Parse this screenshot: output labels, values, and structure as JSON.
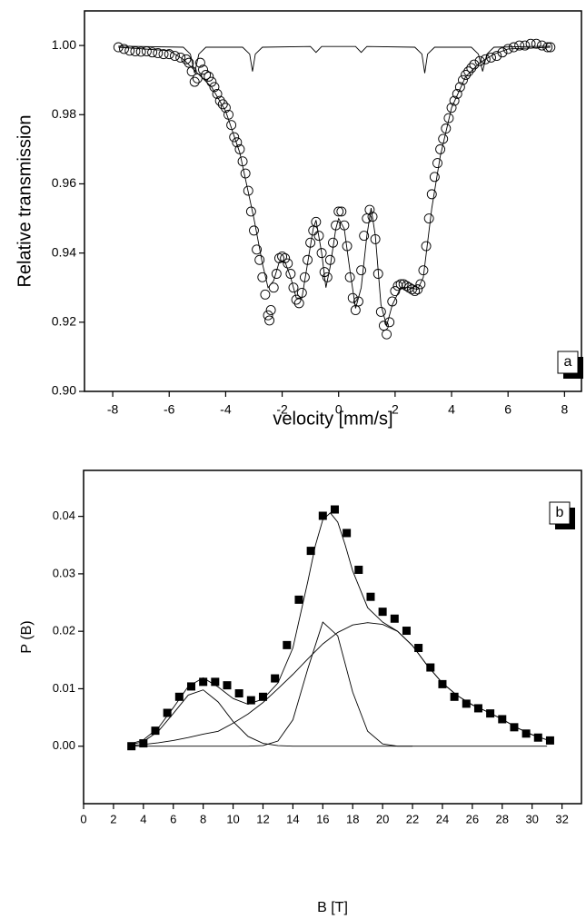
{
  "chart_data": [
    {
      "type": "scatter",
      "label": "a",
      "marker": "circle",
      "color": "#000000",
      "x_label": "velocity [mm/s]",
      "y_label": "Relative transmission",
      "xlim": [
        -9,
        8.6
      ],
      "ylim": [
        0.9,
        1.01
      ],
      "xticks": [
        -8,
        -6,
        -4,
        -2,
        0,
        2,
        4,
        6,
        8
      ],
      "yticks": [
        {
          "value": 0.9,
          "label": "0.90"
        },
        {
          "value": 0.92,
          "label": "0.92"
        },
        {
          "value": 0.94,
          "label": "0.94"
        },
        {
          "value": 0.96,
          "label": "0.96"
        },
        {
          "value": 0.98,
          "label": "0.98"
        },
        {
          "value": 1.0,
          "label": "1.00"
        }
      ],
      "points": {
        "x": [
          -7.8,
          -7.6,
          -7.4,
          -7.2,
          -7.0,
          -6.8,
          -6.6,
          -6.4,
          -6.2,
          -6.0,
          -5.8,
          -5.6,
          -5.4,
          -5.3,
          -5.2,
          -5.1,
          -5.0,
          -4.9,
          -4.8,
          -4.7,
          -4.6,
          -4.5,
          -4.4,
          -4.3,
          -4.2,
          -4.1,
          -4.0,
          -3.9,
          -3.8,
          -3.7,
          -3.6,
          -3.5,
          -3.4,
          -3.3,
          -3.2,
          -3.1,
          -3.0,
          -2.9,
          -2.8,
          -2.7,
          -2.6,
          -2.5,
          -2.45,
          -2.4,
          -2.3,
          -2.2,
          -2.1,
          -2.0,
          -1.9,
          -1.8,
          -1.7,
          -1.6,
          -1.5,
          -1.4,
          -1.3,
          -1.2,
          -1.1,
          -1.0,
          -0.9,
          -0.8,
          -0.7,
          -0.6,
          -0.5,
          -0.4,
          -0.3,
          -0.2,
          -0.1,
          0.0,
          0.1,
          0.2,
          0.3,
          0.4,
          0.5,
          0.6,
          0.7,
          0.8,
          0.9,
          1.0,
          1.1,
          1.2,
          1.3,
          1.4,
          1.5,
          1.6,
          1.7,
          1.8,
          1.9,
          2.0,
          2.1,
          2.2,
          2.3,
          2.4,
          2.5,
          2.6,
          2.7,
          2.8,
          2.9,
          3.0,
          3.1,
          3.2,
          3.3,
          3.4,
          3.5,
          3.6,
          3.7,
          3.8,
          3.9,
          4.0,
          4.1,
          4.2,
          4.3,
          4.4,
          4.5,
          4.6,
          4.7,
          4.8,
          5.0,
          5.2,
          5.4,
          5.6,
          5.8,
          6.0,
          6.2,
          6.4,
          6.6,
          6.8,
          7.0,
          7.2,
          7.4,
          7.5
        ],
        "values": [
          0.9995,
          0.999,
          0.9985,
          0.9983,
          0.9982,
          0.9983,
          0.998,
          0.9978,
          0.9975,
          0.9975,
          0.997,
          0.9965,
          0.996,
          0.995,
          0.9925,
          0.9895,
          0.9905,
          0.995,
          0.993,
          0.9915,
          0.991,
          0.9895,
          0.988,
          0.986,
          0.984,
          0.983,
          0.982,
          0.98,
          0.977,
          0.9735,
          0.972,
          0.97,
          0.9665,
          0.963,
          0.958,
          0.952,
          0.9465,
          0.941,
          0.938,
          0.933,
          0.928,
          0.922,
          0.9205,
          0.9235,
          0.93,
          0.934,
          0.9385,
          0.939,
          0.9385,
          0.937,
          0.934,
          0.93,
          0.9265,
          0.9255,
          0.9285,
          0.933,
          0.938,
          0.943,
          0.9465,
          0.949,
          0.945,
          0.94,
          0.9345,
          0.933,
          0.938,
          0.943,
          0.948,
          0.952,
          0.952,
          0.948,
          0.942,
          0.933,
          0.927,
          0.9235,
          0.926,
          0.935,
          0.945,
          0.95,
          0.9525,
          0.9505,
          0.944,
          0.934,
          0.923,
          0.919,
          0.9165,
          0.92,
          0.926,
          0.929,
          0.9305,
          0.931,
          0.931,
          0.9305,
          0.93,
          0.9295,
          0.929,
          0.9295,
          0.931,
          0.935,
          0.942,
          0.95,
          0.957,
          0.962,
          0.966,
          0.97,
          0.973,
          0.976,
          0.979,
          0.982,
          0.984,
          0.986,
          0.988,
          0.99,
          0.9915,
          0.9925,
          0.9935,
          0.9945,
          0.9955,
          0.996,
          0.9965,
          0.997,
          0.998,
          0.999,
          0.9995,
          1.0,
          1.0,
          1.0005,
          1.0005,
          1.0,
          0.9995,
          0.9995
        ]
      },
      "lines": [
        {
          "x": [
            -7.8,
            -6,
            -5.5,
            -5,
            -4.5,
            -4,
            -3.5,
            -3,
            -2.7,
            -2.5,
            -2.3,
            -2.1,
            -1.9,
            -1.7,
            -1.5,
            -1.3,
            -1.1,
            -0.9,
            -0.8,
            -0.6,
            -0.45,
            -0.3,
            -0.1,
            0,
            0.2,
            0.4,
            0.6,
            0.8,
            1.0,
            1.15,
            1.3,
            1.5,
            1.7,
            1.9,
            2.2,
            2.5,
            2.8,
            3.0,
            3.3,
            3.6,
            4,
            4.5,
            5,
            5.5,
            6,
            7.5
          ],
          "values": [
            0.9995,
            0.9985,
            0.996,
            0.992,
            0.988,
            0.981,
            0.969,
            0.95,
            0.937,
            0.93,
            0.932,
            0.9375,
            0.9375,
            0.933,
            0.927,
            0.927,
            0.937,
            0.947,
            0.9495,
            0.94,
            0.93,
            0.936,
            0.947,
            0.95,
            0.947,
            0.935,
            0.924,
            0.93,
            0.945,
            0.953,
            0.945,
            0.925,
            0.919,
            0.925,
            0.93,
            0.93,
            0.9295,
            0.933,
            0.953,
            0.968,
            0.982,
            0.991,
            0.995,
            0.9975,
            0.999,
            0.9995
          ]
        },
        {
          "x": [
            -7.8,
            -5.5,
            -5.25,
            -5.1,
            -4.95,
            -4.7,
            -3.4,
            -3.15,
            -3.05,
            -2.95,
            -2.7,
            -1.0,
            -0.8,
            -0.6,
            0.6,
            0.8,
            1.0,
            2.7,
            2.95,
            3.05,
            3.15,
            3.4,
            4.7,
            4.95,
            5.1,
            5.25,
            5.5,
            7.5
          ],
          "values": [
            0.9998,
            0.9995,
            0.9975,
            0.992,
            0.9975,
            0.9995,
            0.9995,
            0.9975,
            0.9925,
            0.9975,
            0.9995,
            0.9997,
            0.998,
            0.9997,
            0.9997,
            0.998,
            0.9997,
            0.9995,
            0.9975,
            0.992,
            0.9975,
            0.9995,
            0.9995,
            0.9975,
            0.9925,
            0.9975,
            0.9995,
            0.9998
          ]
        }
      ]
    },
    {
      "type": "scatter",
      "label": "b",
      "marker": "square",
      "color": "#000000",
      "x_label": "B [T]",
      "y_label": "P (B)",
      "xlim": [
        0,
        33.3
      ],
      "ylim": [
        -0.01,
        0.048
      ],
      "xticks": [
        0,
        2,
        4,
        6,
        8,
        10,
        12,
        14,
        16,
        18,
        20,
        22,
        24,
        26,
        28,
        30,
        32
      ],
      "yticks": [
        {
          "value": 0,
          "label": "0.00"
        },
        {
          "value": 0.01,
          "label": "0.01"
        },
        {
          "value": 0.02,
          "label": "0.02"
        },
        {
          "value": 0.03,
          "label": "0.03"
        },
        {
          "value": 0.04,
          "label": "0.04"
        }
      ],
      "points": {
        "x": [
          3.2,
          4,
          4.8,
          5.6,
          6.4,
          7.2,
          8,
          8.8,
          9.6,
          10.4,
          11.2,
          12,
          12.8,
          13.6,
          14.4,
          15.2,
          16,
          16.8,
          17.6,
          18.4,
          19.2,
          20,
          20.8,
          21.6,
          22.4,
          23.2,
          24,
          24.8,
          25.6,
          26.4,
          27.2,
          28,
          28.8,
          29.6,
          30.4,
          31.2
        ],
        "values": [
          0.0,
          0.0005,
          0.0027,
          0.0058,
          0.0086,
          0.0104,
          0.0112,
          0.0112,
          0.0106,
          0.0092,
          0.008,
          0.0086,
          0.0118,
          0.0176,
          0.0255,
          0.034,
          0.0401,
          0.0412,
          0.0371,
          0.0307,
          0.026,
          0.0234,
          0.0222,
          0.0201,
          0.0171,
          0.0137,
          0.0108,
          0.0086,
          0.0074,
          0.0066,
          0.0057,
          0.0047,
          0.0033,
          0.0022,
          0.0015,
          0.001
        ]
      },
      "lines": [
        {
          "x": [
            3,
            4,
            5,
            6,
            7,
            8,
            9,
            10,
            11,
            12,
            13,
            14,
            15,
            15.5,
            16,
            16.5,
            17,
            17.5,
            18,
            19,
            20,
            21,
            22,
            23,
            24,
            25,
            26,
            27,
            28,
            29,
            30,
            31
          ],
          "values": [
            0.0003,
            0.0011,
            0.0032,
            0.0067,
            0.0104,
            0.0119,
            0.0103,
            0.0083,
            0.0073,
            0.0082,
            0.011,
            0.0171,
            0.0287,
            0.0349,
            0.0394,
            0.0406,
            0.039,
            0.035,
            0.0305,
            0.0241,
            0.0216,
            0.02,
            0.0175,
            0.014,
            0.011,
            0.0088,
            0.0072,
            0.006,
            0.0047,
            0.0032,
            0.002,
            0.0011
          ]
        },
        {
          "x": [
            3,
            4,
            5,
            6,
            7,
            8,
            9,
            10,
            11,
            12,
            13,
            14,
            15,
            16,
            17,
            18,
            19,
            20,
            21,
            22,
            23,
            24,
            25,
            26,
            27,
            28,
            29,
            30,
            31
          ],
          "values": [
            0.0002,
            0.0008,
            0.0026,
            0.0057,
            0.0089,
            0.0098,
            0.0077,
            0.0043,
            0.0017,
            0.0005,
            0.0001,
            0,
            0,
            0,
            0,
            0,
            0,
            0,
            0,
            0,
            0,
            0,
            0,
            0,
            0,
            0,
            0,
            0,
            0
          ]
        },
        {
          "x": [
            3,
            4,
            5,
            6,
            7,
            8,
            9,
            10,
            11,
            12,
            13,
            14,
            15,
            16,
            17,
            18,
            19,
            20,
            21,
            22
          ],
          "values": [
            0,
            0,
            0,
            0,
            0,
            0,
            0,
            0,
            0,
            0.0001,
            0.0009,
            0.0046,
            0.0135,
            0.0216,
            0.0192,
            0.0094,
            0.0026,
            0.0004,
            0,
            0
          ]
        },
        {
          "x": [
            3,
            4,
            5,
            6,
            7,
            8,
            9,
            10,
            11,
            12,
            13,
            14,
            15,
            16,
            17,
            18,
            19,
            20,
            21,
            22,
            23,
            24,
            25,
            26,
            27,
            28,
            29,
            30,
            31
          ],
          "values": [
            0.0001,
            0.0003,
            0.0006,
            0.001,
            0.0015,
            0.0021,
            0.0026,
            0.004,
            0.0056,
            0.0076,
            0.01,
            0.0125,
            0.0152,
            0.0178,
            0.0198,
            0.0211,
            0.0215,
            0.0212,
            0.02,
            0.0175,
            0.014,
            0.011,
            0.0088,
            0.0072,
            0.006,
            0.0047,
            0.0032,
            0.002,
            0.0011
          ]
        }
      ]
    }
  ]
}
